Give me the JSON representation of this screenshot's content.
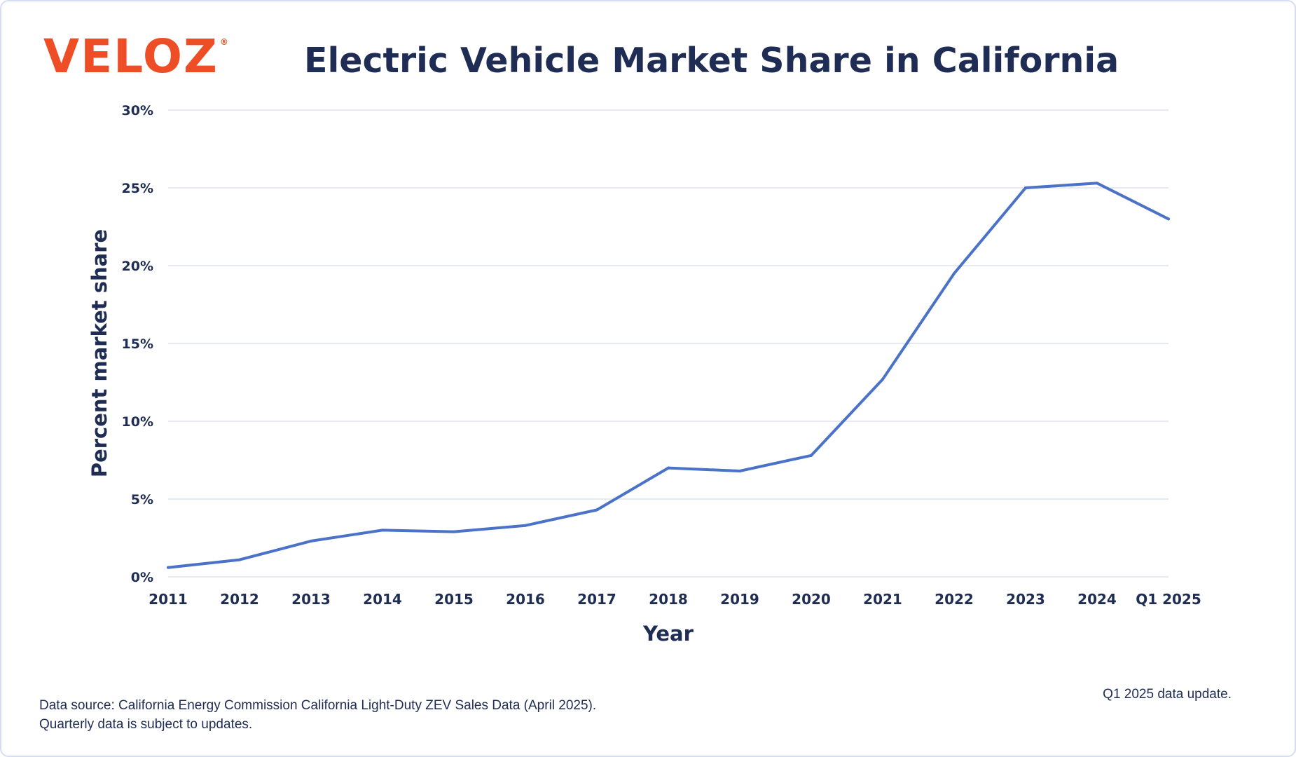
{
  "brand": {
    "logo_text": "VELOZ",
    "logo_mark": "®"
  },
  "colors": {
    "brand": "#ee4e26",
    "navy": "#1f2d54",
    "line": "#4a72c9",
    "grid": "#e6eaf3"
  },
  "chart_data": {
    "type": "line",
    "title": "Electric Vehicle Market Share in California",
    "xlabel": "Year",
    "ylabel": "Percent market share",
    "categories": [
      "2011",
      "2012",
      "2013",
      "2014",
      "2015",
      "2016",
      "2017",
      "2018",
      "2019",
      "2020",
      "2021",
      "2022",
      "2023",
      "2024",
      "Q1 2025"
    ],
    "series": [
      {
        "values": [
          0.6,
          1.1,
          2.3,
          3.0,
          2.9,
          3.3,
          4.3,
          7.0,
          6.8,
          7.8,
          12.7,
          19.5,
          25.0,
          25.3,
          23.0
        ]
      }
    ],
    "ylim": [
      0,
      30
    ],
    "yticks": [
      0,
      5,
      10,
      15,
      20,
      25,
      30
    ],
    "ytick_labels": [
      "0%",
      "5%",
      "10%",
      "15%",
      "20%",
      "25%",
      "30%"
    ],
    "grid": true
  },
  "footer": {
    "source_line1": "Data source: California Energy Commission California Light-Duty ZEV Sales Data (April 2025).",
    "source_line2": "Quarterly data is subject to updates.",
    "update_note": "Q1 2025 data update."
  }
}
